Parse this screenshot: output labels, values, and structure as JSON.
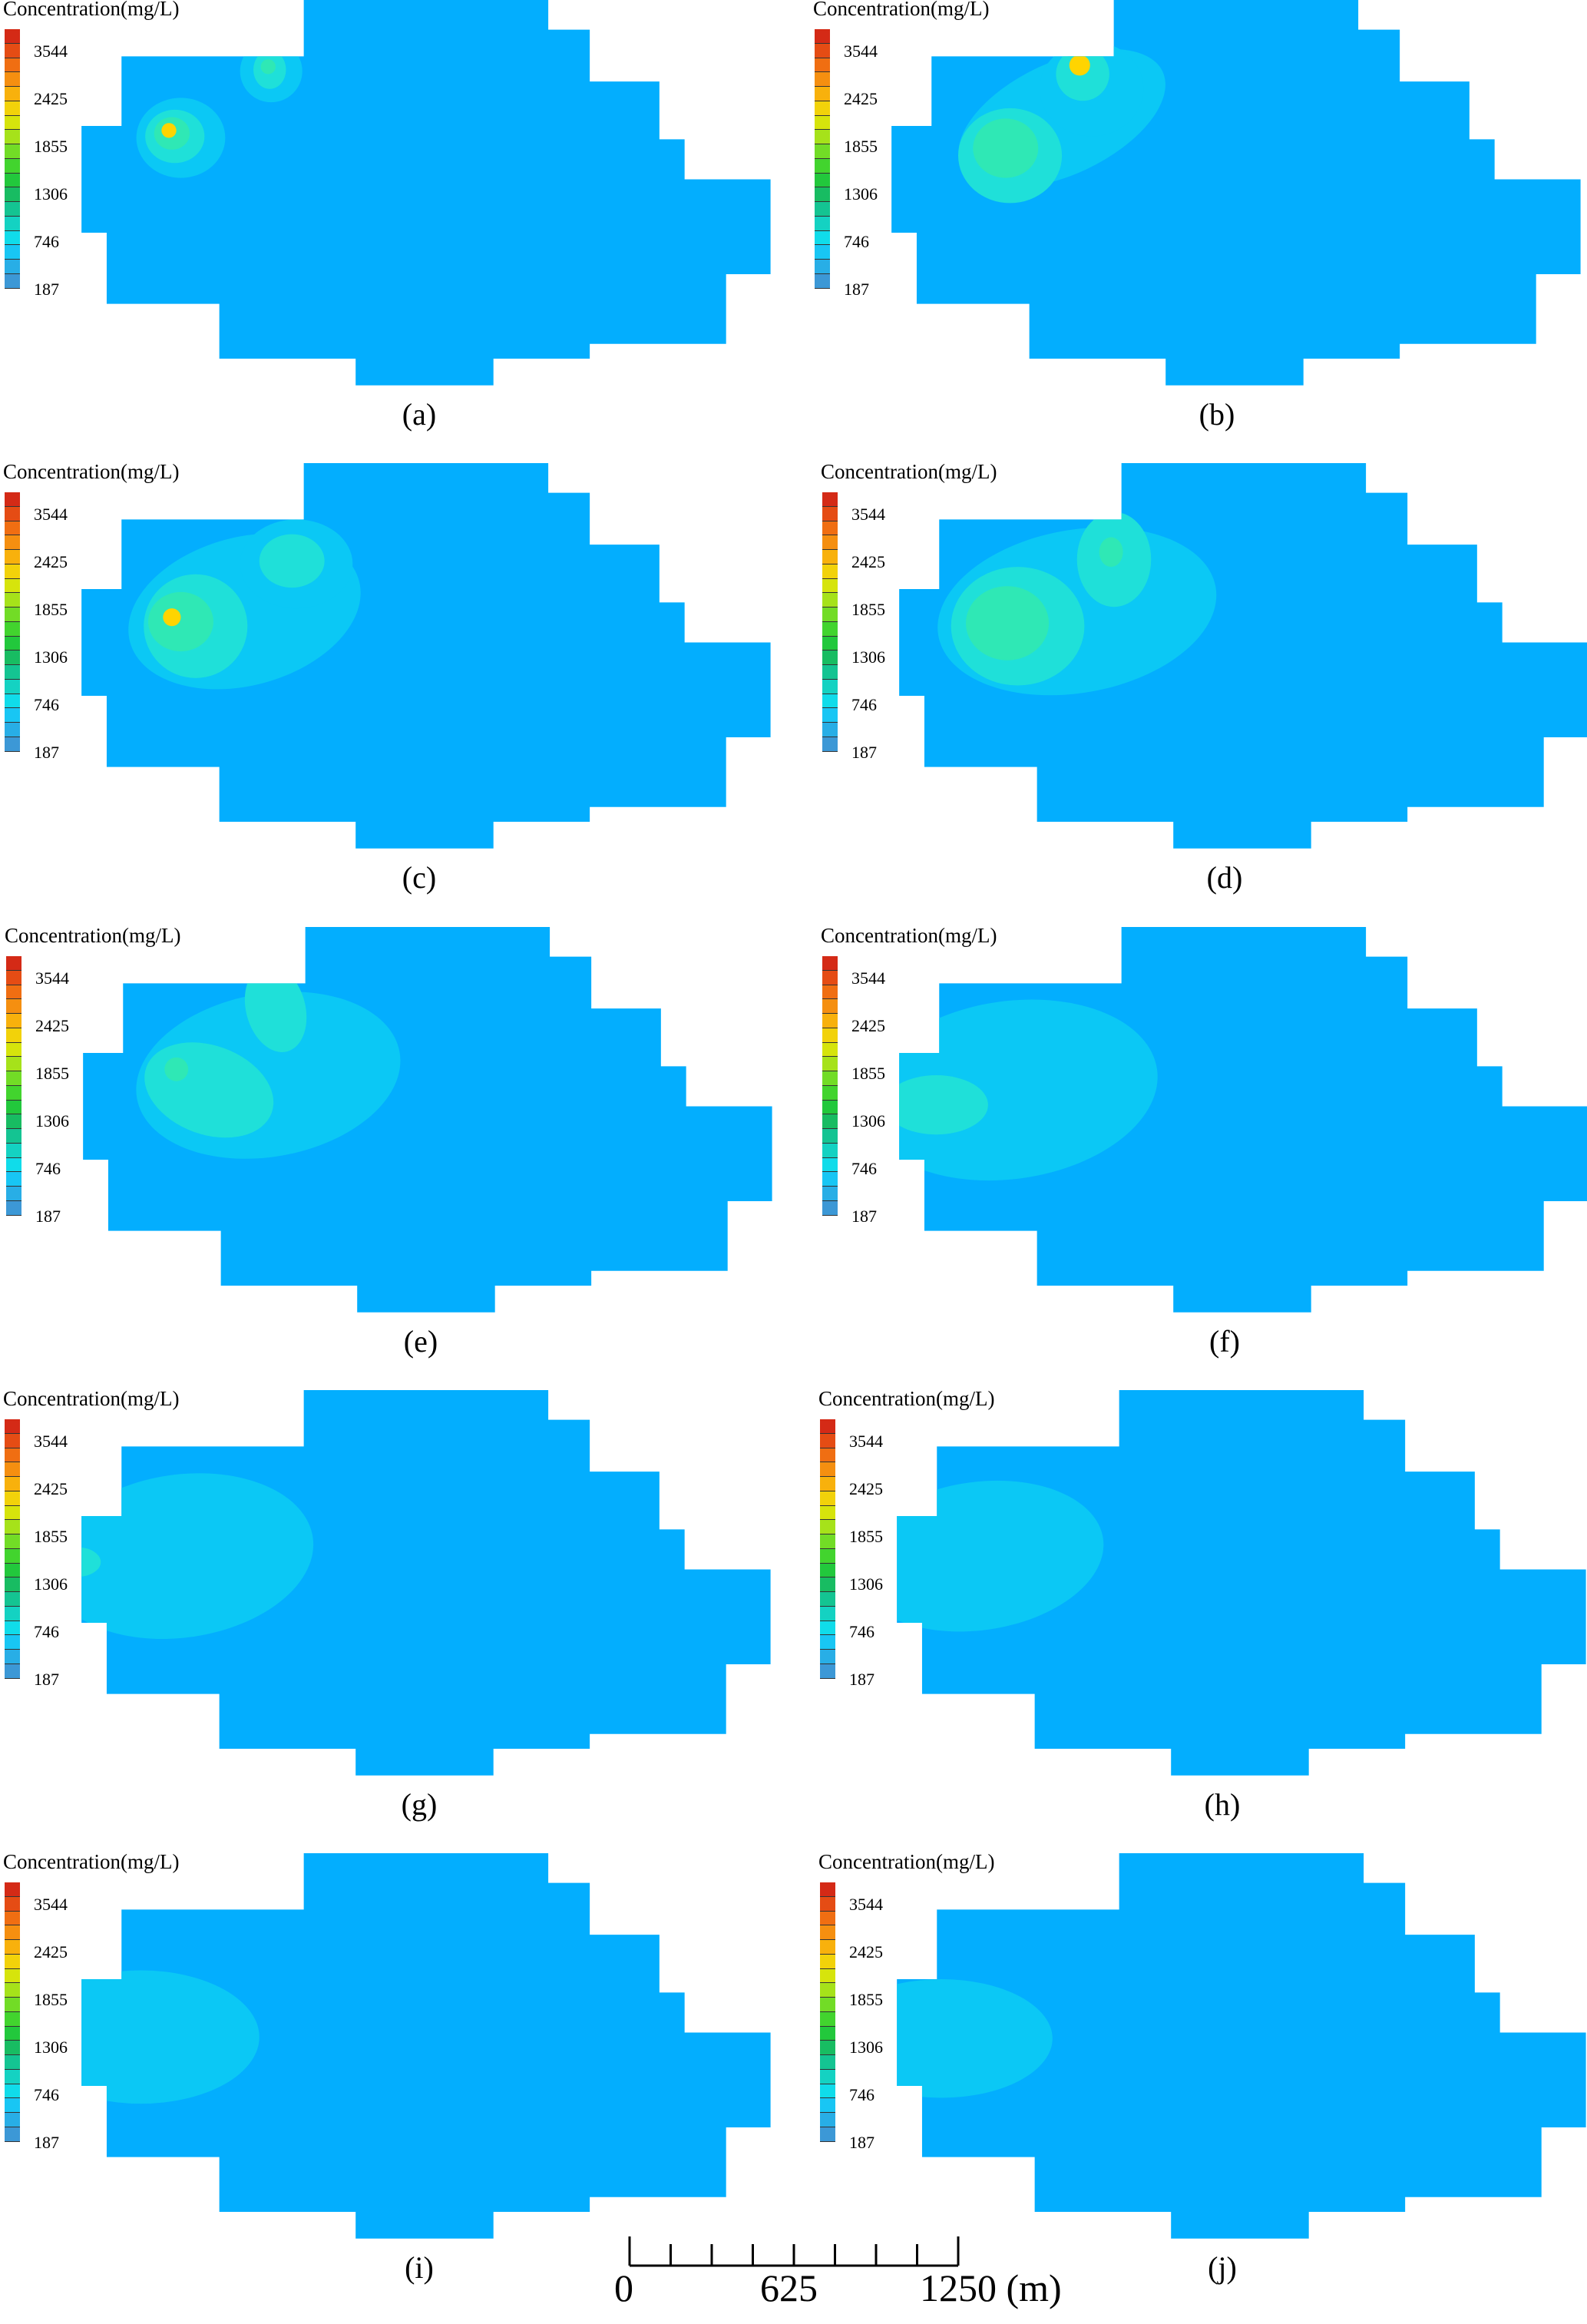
{
  "legend": {
    "title": "Concentration(mg/L)",
    "ticks": [
      "3544",
      "2425",
      "1855",
      "1306",
      "746",
      "187"
    ],
    "colors": [
      "#d42a16",
      "#e54c14",
      "#f06e12",
      "#f58f10",
      "#f8b10c",
      "#f2d20a",
      "#d6e40c",
      "#a6e21a",
      "#72dc26",
      "#42d42e",
      "#22c83c",
      "#18bc62",
      "#14c492",
      "#14d2c2",
      "#10dcea",
      "#18c6f4",
      "#28aee6",
      "#3c98d6"
    ]
  },
  "colors": {
    "background": "#03aefe",
    "low": "#0bc8f5",
    "mid": "#1fe0d9",
    "high": "#2fe8b5",
    "peak": "#ffd400"
  },
  "panels": [
    {
      "label": "(a)"
    },
    {
      "label": "(b)"
    },
    {
      "label": "(c)"
    },
    {
      "label": "(d)"
    },
    {
      "label": "(e)"
    },
    {
      "label": "(f)"
    },
    {
      "label": "(g)"
    },
    {
      "label": "(h)"
    },
    {
      "label": "(i)"
    },
    {
      "label": "(j)"
    }
  ],
  "scalebar": {
    "labels": [
      "0",
      "625",
      "1250 (m)"
    ]
  }
}
